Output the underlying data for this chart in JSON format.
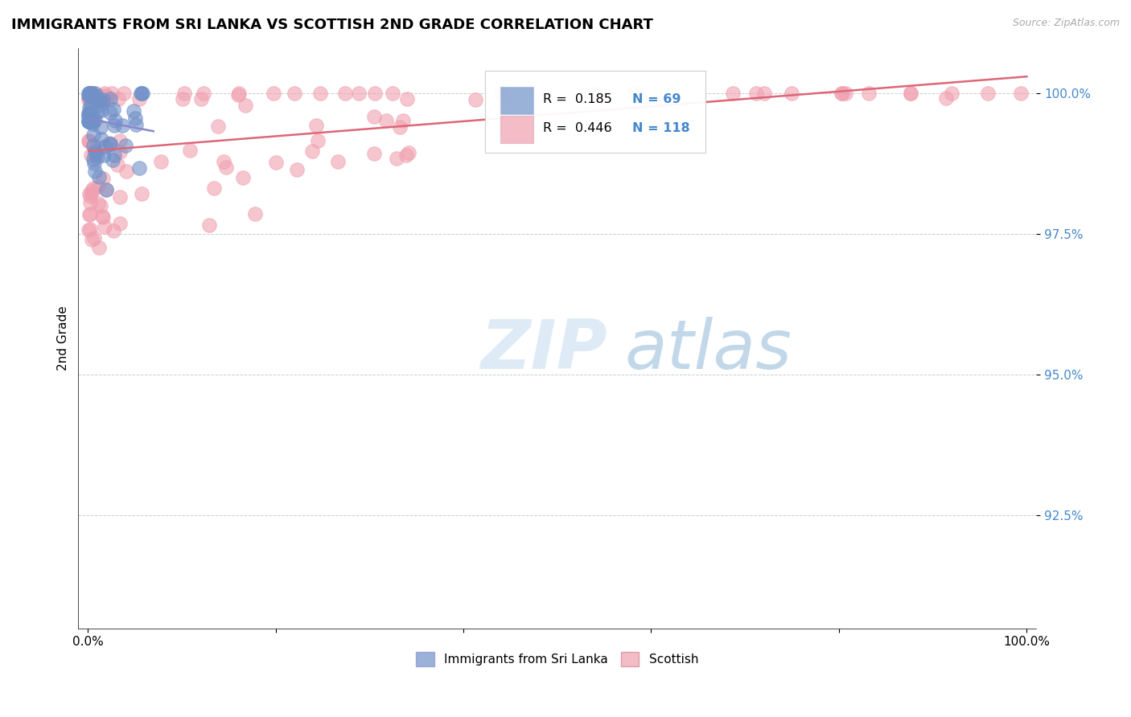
{
  "title": "IMMIGRANTS FROM SRI LANKA VS SCOTTISH 2ND GRADE CORRELATION CHART",
  "source": "Source: ZipAtlas.com",
  "ylabel": "2nd Grade",
  "xlim_pct": [
    0.0,
    1.0
  ],
  "ylim": [
    0.905,
    1.008
  ],
  "yticks": [
    0.925,
    0.95,
    0.975,
    1.0
  ],
  "ytick_labels": [
    "92.5%",
    "95.0%",
    "97.5%",
    "100.0%"
  ],
  "xtick_vals": [
    0.0,
    0.2,
    0.4,
    0.6,
    0.8,
    1.0
  ],
  "xtick_labels": [
    "0.0%",
    "",
    "",
    "",
    "",
    "100.0%"
  ],
  "legend_labels": [
    "Immigrants from Sri Lanka",
    "Scottish"
  ],
  "blue_color": "#7090c8",
  "pink_color": "#f0a0b0",
  "blue_line_color": "#8888cc",
  "pink_line_color": "#dd6677",
  "R_blue": 0.185,
  "N_blue": 69,
  "R_pink": 0.446,
  "N_pink": 118,
  "watermark_zip": "ZIP",
  "watermark_atlas": "atlas",
  "title_fontsize": 13,
  "source_fontsize": 9,
  "tick_fontsize": 11,
  "ylabel_fontsize": 11
}
